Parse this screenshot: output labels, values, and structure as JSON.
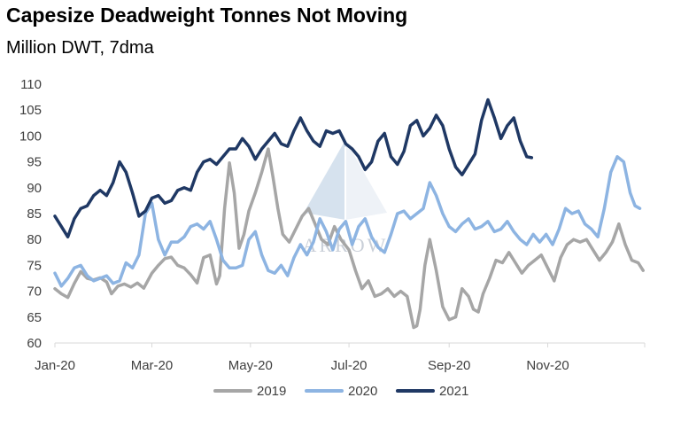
{
  "chart_data": {
    "type": "line",
    "title": "Capesize Deadweight Tonnes Not Moving",
    "subtitle": "Million DWT, 7dma",
    "xlabel": "",
    "ylabel": "",
    "ylim": [
      60,
      110
    ],
    "yticks": [
      "60",
      "65",
      "70",
      "75",
      "80",
      "85",
      "90",
      "95",
      "100",
      "105",
      "110"
    ],
    "xlim": [
      "01-01",
      "12-31"
    ],
    "xticks": [
      {
        "label": "Jan-20",
        "date": "01-01"
      },
      {
        "label": "Mar-20",
        "date": "03-01"
      },
      {
        "label": "May-20",
        "date": "05-01"
      },
      {
        "label": "Jul-20",
        "date": "07-01"
      },
      {
        "label": "Sep-20",
        "date": "09-01"
      },
      {
        "label": "Nov-20",
        "date": "11-01"
      }
    ],
    "grid": false,
    "legend": "bottom",
    "watermark": "ARROW",
    "series": [
      {
        "name": "2019",
        "color": "#a6a6a6",
        "points": [
          [
            "01-01",
            70.5
          ],
          [
            "01-05",
            69.5
          ],
          [
            "01-09",
            68.8
          ],
          [
            "01-13",
            71.5
          ],
          [
            "01-17",
            73.8
          ],
          [
            "01-21",
            72.5
          ],
          [
            "01-25",
            72.2
          ],
          [
            "01-29",
            72.6
          ],
          [
            "02-02",
            71.8
          ],
          [
            "02-05",
            69.5
          ],
          [
            "02-09",
            71.0
          ],
          [
            "02-13",
            71.4
          ],
          [
            "02-17",
            70.8
          ],
          [
            "02-21",
            71.6
          ],
          [
            "02-25",
            70.6
          ],
          [
            "03-01",
            73.5
          ],
          [
            "03-05",
            75.0
          ],
          [
            "03-09",
            76.3
          ],
          [
            "03-13",
            76.6
          ],
          [
            "03-17",
            75.0
          ],
          [
            "03-21",
            74.5
          ],
          [
            "03-25",
            73.2
          ],
          [
            "03-29",
            71.6
          ],
          [
            "04-02",
            76.5
          ],
          [
            "04-06",
            77.0
          ],
          [
            "04-10",
            71.4
          ],
          [
            "04-12",
            73.0
          ],
          [
            "04-15",
            86.0
          ],
          [
            "04-18",
            94.8
          ],
          [
            "04-21",
            89.0
          ],
          [
            "04-24",
            78.3
          ],
          [
            "04-27",
            81.0
          ],
          [
            "04-30",
            85.5
          ],
          [
            "05-04",
            89.0
          ],
          [
            "05-08",
            93.0
          ],
          [
            "05-12",
            97.5
          ],
          [
            "05-15",
            92.0
          ],
          [
            "05-18",
            86.0
          ],
          [
            "05-21",
            81.0
          ],
          [
            "05-25",
            79.5
          ],
          [
            "05-29",
            82.0
          ],
          [
            "06-02",
            84.5
          ],
          [
            "06-06",
            86.0
          ],
          [
            "06-10",
            83.0
          ],
          [
            "06-14",
            80.0
          ],
          [
            "06-18",
            79.0
          ],
          [
            "06-22",
            82.5
          ],
          [
            "06-26",
            80.0
          ],
          [
            "07-01",
            78.0
          ],
          [
            "07-05",
            74.0
          ],
          [
            "07-09",
            70.5
          ],
          [
            "07-13",
            72.0
          ],
          [
            "07-17",
            69.0
          ],
          [
            "07-21",
            69.5
          ],
          [
            "07-25",
            70.5
          ],
          [
            "07-29",
            69.0
          ],
          [
            "08-02",
            70.0
          ],
          [
            "08-06",
            69.0
          ],
          [
            "08-10",
            63.0
          ],
          [
            "08-12",
            63.3
          ],
          [
            "08-14",
            66.5
          ],
          [
            "08-17",
            75.0
          ],
          [
            "08-20",
            80.0
          ],
          [
            "08-24",
            74.0
          ],
          [
            "08-28",
            67.0
          ],
          [
            "09-01",
            64.5
          ],
          [
            "09-05",
            65.0
          ],
          [
            "09-09",
            70.5
          ],
          [
            "09-13",
            69.0
          ],
          [
            "09-16",
            66.5
          ],
          [
            "09-19",
            66.0
          ],
          [
            "09-22",
            69.5
          ],
          [
            "09-26",
            72.5
          ],
          [
            "09-30",
            76.0
          ],
          [
            "10-04",
            75.5
          ],
          [
            "10-08",
            77.5
          ],
          [
            "10-12",
            75.5
          ],
          [
            "10-16",
            73.5
          ],
          [
            "10-20",
            75.0
          ],
          [
            "10-24",
            76.0
          ],
          [
            "10-28",
            77.0
          ],
          [
            "11-01",
            74.5
          ],
          [
            "11-05",
            72.0
          ],
          [
            "11-09",
            76.5
          ],
          [
            "11-13",
            79.0
          ],
          [
            "11-17",
            80.0
          ],
          [
            "11-21",
            79.5
          ],
          [
            "11-25",
            80.0
          ],
          [
            "11-29",
            78.0
          ],
          [
            "12-03",
            76.0
          ],
          [
            "12-07",
            77.5
          ],
          [
            "12-11",
            79.5
          ],
          [
            "12-15",
            83.0
          ],
          [
            "12-19",
            79.0
          ],
          [
            "12-23",
            76.0
          ],
          [
            "12-27",
            75.5
          ],
          [
            "12-30",
            74.0
          ]
        ]
      },
      {
        "name": "2020",
        "color": "#8db4e2",
        "points": [
          [
            "01-01",
            73.5
          ],
          [
            "01-05",
            71.0
          ],
          [
            "01-09",
            72.5
          ],
          [
            "01-13",
            74.5
          ],
          [
            "01-17",
            75.0
          ],
          [
            "01-21",
            73.0
          ],
          [
            "01-25",
            72.0
          ],
          [
            "01-29",
            72.5
          ],
          [
            "02-02",
            73.0
          ],
          [
            "02-06",
            71.5
          ],
          [
            "02-10",
            72.0
          ],
          [
            "02-14",
            75.5
          ],
          [
            "02-18",
            74.5
          ],
          [
            "02-22",
            77.0
          ],
          [
            "02-26",
            85.0
          ],
          [
            "03-01",
            87.0
          ],
          [
            "03-05",
            80.0
          ],
          [
            "03-09",
            77.0
          ],
          [
            "03-13",
            79.5
          ],
          [
            "03-17",
            79.5
          ],
          [
            "03-21",
            80.5
          ],
          [
            "03-25",
            82.5
          ],
          [
            "03-29",
            83.0
          ],
          [
            "04-02",
            82.0
          ],
          [
            "04-06",
            83.5
          ],
          [
            "04-10",
            80.0
          ],
          [
            "04-14",
            76.0
          ],
          [
            "04-18",
            74.5
          ],
          [
            "04-22",
            74.5
          ],
          [
            "04-26",
            75.0
          ],
          [
            "04-30",
            80.0
          ],
          [
            "05-04",
            81.5
          ],
          [
            "05-08",
            77.0
          ],
          [
            "05-12",
            74.0
          ],
          [
            "05-16",
            73.5
          ],
          [
            "05-20",
            75.0
          ],
          [
            "05-24",
            73.0
          ],
          [
            "05-28",
            76.5
          ],
          [
            "06-01",
            79.0
          ],
          [
            "06-05",
            77.0
          ],
          [
            "06-09",
            79.5
          ],
          [
            "06-13",
            84.0
          ],
          [
            "06-17",
            81.5
          ],
          [
            "06-21",
            78.0
          ],
          [
            "06-25",
            82.0
          ],
          [
            "06-29",
            83.5
          ],
          [
            "07-03",
            79.0
          ],
          [
            "07-07",
            82.5
          ],
          [
            "07-11",
            84.0
          ],
          [
            "07-15",
            80.5
          ],
          [
            "07-19",
            78.5
          ],
          [
            "07-23",
            77.5
          ],
          [
            "07-27",
            81.0
          ],
          [
            "07-31",
            85.0
          ],
          [
            "08-04",
            85.5
          ],
          [
            "08-08",
            84.0
          ],
          [
            "08-12",
            85.0
          ],
          [
            "08-16",
            86.0
          ],
          [
            "08-20",
            91.0
          ],
          [
            "08-24",
            88.5
          ],
          [
            "08-28",
            85.0
          ],
          [
            "09-01",
            82.5
          ],
          [
            "09-05",
            81.5
          ],
          [
            "09-09",
            83.0
          ],
          [
            "09-13",
            84.0
          ],
          [
            "09-17",
            82.0
          ],
          [
            "09-21",
            82.5
          ],
          [
            "09-25",
            83.5
          ],
          [
            "09-29",
            81.5
          ],
          [
            "10-03",
            82.0
          ],
          [
            "10-07",
            83.5
          ],
          [
            "10-11",
            81.5
          ],
          [
            "10-15",
            80.0
          ],
          [
            "10-19",
            79.0
          ],
          [
            "10-23",
            81.0
          ],
          [
            "10-27",
            79.5
          ],
          [
            "10-31",
            81.0
          ],
          [
            "11-04",
            79.0
          ],
          [
            "11-08",
            82.0
          ],
          [
            "11-12",
            86.0
          ],
          [
            "11-16",
            85.0
          ],
          [
            "11-20",
            85.5
          ],
          [
            "11-24",
            83.0
          ],
          [
            "11-28",
            82.0
          ],
          [
            "12-02",
            80.5
          ],
          [
            "12-06",
            86.0
          ],
          [
            "12-10",
            93.0
          ],
          [
            "12-14",
            96.0
          ],
          [
            "12-18",
            95.0
          ],
          [
            "12-22",
            89.0
          ],
          [
            "12-25",
            86.5
          ],
          [
            "12-28",
            86.0
          ]
        ]
      },
      {
        "name": "2021",
        "color": "#1f3864",
        "points": [
          [
            "01-01",
            84.5
          ],
          [
            "01-05",
            82.5
          ],
          [
            "01-09",
            80.5
          ],
          [
            "01-13",
            84.0
          ],
          [
            "01-17",
            86.0
          ],
          [
            "01-21",
            86.5
          ],
          [
            "01-25",
            88.5
          ],
          [
            "01-29",
            89.5
          ],
          [
            "02-02",
            88.5
          ],
          [
            "02-06",
            91.0
          ],
          [
            "02-10",
            95.0
          ],
          [
            "02-14",
            93.0
          ],
          [
            "02-18",
            89.0
          ],
          [
            "02-22",
            84.5
          ],
          [
            "02-26",
            85.5
          ],
          [
            "03-01",
            88.0
          ],
          [
            "03-05",
            88.5
          ],
          [
            "03-09",
            87.0
          ],
          [
            "03-13",
            87.5
          ],
          [
            "03-17",
            89.5
          ],
          [
            "03-21",
            90.0
          ],
          [
            "03-25",
            89.5
          ],
          [
            "03-29",
            93.0
          ],
          [
            "04-02",
            95.0
          ],
          [
            "04-06",
            95.5
          ],
          [
            "04-10",
            94.5
          ],
          [
            "04-14",
            96.0
          ],
          [
            "04-18",
            97.5
          ],
          [
            "04-22",
            97.5
          ],
          [
            "04-26",
            99.5
          ],
          [
            "04-30",
            98.0
          ],
          [
            "05-04",
            95.5
          ],
          [
            "05-08",
            97.5
          ],
          [
            "05-12",
            99.0
          ],
          [
            "05-16",
            100.5
          ],
          [
            "05-20",
            98.5
          ],
          [
            "05-24",
            98.0
          ],
          [
            "05-28",
            101.0
          ],
          [
            "06-01",
            103.5
          ],
          [
            "06-05",
            101.0
          ],
          [
            "06-09",
            99.0
          ],
          [
            "06-13",
            98.0
          ],
          [
            "06-17",
            101.0
          ],
          [
            "06-21",
            100.5
          ],
          [
            "06-25",
            101.0
          ],
          [
            "06-29",
            98.5
          ],
          [
            "07-03",
            97.5
          ],
          [
            "07-07",
            96.0
          ],
          [
            "07-11",
            93.5
          ],
          [
            "07-15",
            95.0
          ],
          [
            "07-19",
            99.0
          ],
          [
            "07-23",
            100.5
          ],
          [
            "07-27",
            96.0
          ],
          [
            "07-31",
            94.5
          ],
          [
            "08-04",
            97.0
          ],
          [
            "08-08",
            102.0
          ],
          [
            "08-12",
            103.0
          ],
          [
            "08-16",
            100.0
          ],
          [
            "08-20",
            101.5
          ],
          [
            "08-24",
            104.0
          ],
          [
            "08-28",
            102.0
          ],
          [
            "09-01",
            97.5
          ],
          [
            "09-05",
            94.0
          ],
          [
            "09-09",
            92.5
          ],
          [
            "09-13",
            94.5
          ],
          [
            "09-17",
            96.5
          ],
          [
            "09-21",
            103.0
          ],
          [
            "09-25",
            107.0
          ],
          [
            "09-29",
            103.5
          ],
          [
            "10-03",
            99.5
          ],
          [
            "10-07",
            102.0
          ],
          [
            "10-11",
            103.5
          ],
          [
            "10-15",
            99.0
          ],
          [
            "10-19",
            96.0
          ],
          [
            "10-22",
            95.8
          ]
        ]
      }
    ]
  }
}
